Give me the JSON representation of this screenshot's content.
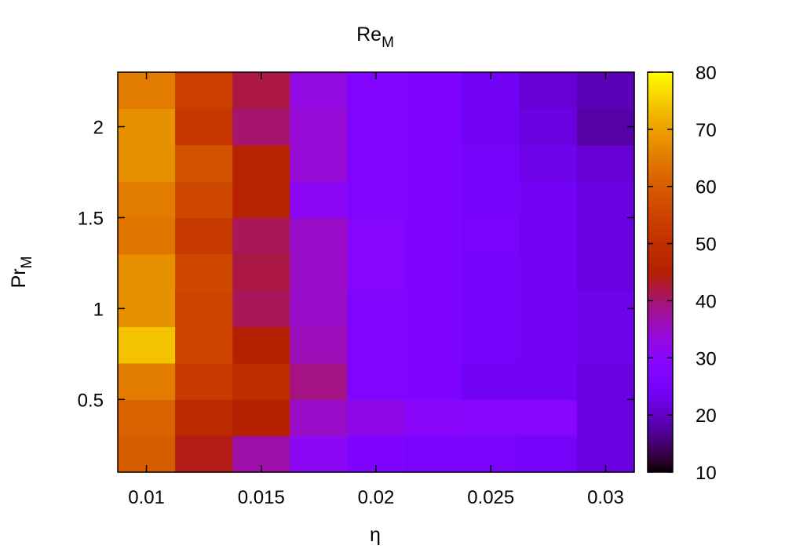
{
  "chart_data": {
    "type": "heatmap",
    "title": "Re",
    "title_subscript": "M",
    "xlabel": "η",
    "ylabel": "Pr",
    "ylabel_subscript": "M",
    "x": [
      0.01,
      0.0125,
      0.015,
      0.0175,
      0.02,
      0.0225,
      0.025,
      0.0275,
      0.03
    ],
    "y": [
      0.2,
      0.4,
      0.6,
      0.8,
      1.0,
      1.2,
      1.4,
      1.6,
      1.8,
      2.0,
      2.2
    ],
    "xlim": [
      0.00875,
      0.03125
    ],
    "ylim": [
      0.1,
      2.3
    ],
    "xticks": [
      0.01,
      0.015,
      0.02,
      0.025,
      0.03
    ],
    "xtick_labels": [
      "0.01",
      "0.015",
      "0.02",
      "0.025",
      "0.03"
    ],
    "yticks": [
      0.5,
      1,
      1.5,
      2
    ],
    "ytick_labels": [
      "0.5",
      "1",
      "1.5",
      "2"
    ],
    "values": [
      [
        60,
        44,
        37,
        31,
        27,
        26,
        26,
        25,
        22
      ],
      [
        61,
        48,
        45,
        35,
        32,
        30,
        29,
        29,
        22
      ],
      [
        65,
        53,
        49,
        39,
        28,
        27,
        24,
        24,
        22
      ],
      [
        74,
        55,
        45,
        36,
        28,
        27,
        25,
        24,
        23
      ],
      [
        68,
        55,
        41,
        35,
        28,
        27,
        25,
        24,
        23
      ],
      [
        68,
        56,
        42,
        35,
        29,
        27,
        25,
        24,
        22
      ],
      [
        64,
        53,
        41,
        35,
        29,
        27,
        26,
        24,
        22
      ],
      [
        65,
        56,
        46,
        31,
        28,
        27,
        25,
        24,
        22
      ],
      [
        68,
        58,
        46,
        34,
        28,
        27,
        25,
        23,
        21
      ],
      [
        68,
        52,
        40,
        34,
        28,
        27,
        24,
        22,
        18
      ],
      [
        65,
        54,
        42,
        33,
        28,
        27,
        24,
        21,
        19
      ]
    ],
    "colorbar": {
      "min": 10,
      "max": 80,
      "ticks": [
        10,
        20,
        30,
        40,
        50,
        60,
        70,
        80
      ],
      "tick_labels": [
        "10",
        "20",
        "30",
        "40",
        "50",
        "60",
        "70",
        "80"
      ],
      "palette": "gnuplot rgbformulae 7,5,15"
    },
    "grid": false,
    "legend": "none"
  }
}
